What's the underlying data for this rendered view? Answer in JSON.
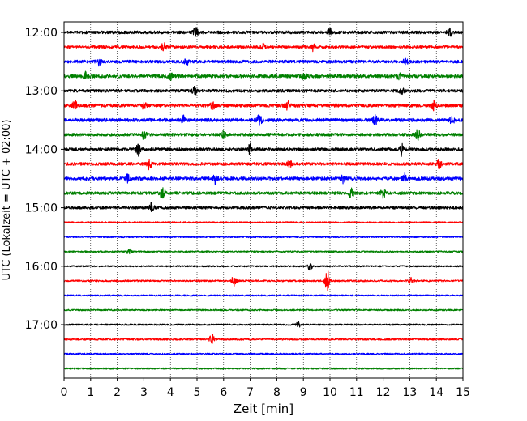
{
  "chart_data": {
    "type": "line",
    "title": "",
    "xlabel": "Zeit  [min]",
    "ylabel": "UTC (Lokalzeit = UTC + 02:00)",
    "xlim": [
      0,
      15
    ],
    "x_ticks": [
      "0",
      "1",
      "2",
      "3",
      "4",
      "5",
      "6",
      "7",
      "8",
      "9",
      "10",
      "11",
      "12",
      "13",
      "14",
      "15"
    ],
    "y_tick_labels": [
      "12:00",
      "13:00",
      "14:00",
      "15:00",
      "16:00",
      "17:00"
    ],
    "grid": "vertical dotted at each minute",
    "trace_color_cycle": [
      "#000000",
      "#ff0000",
      "#0000ff",
      "#008000"
    ],
    "series": [
      {
        "start": "12:00",
        "color": "#000000",
        "amplitude": 1.0,
        "events": [
          {
            "t": 4.95,
            "a": 2.2
          },
          {
            "t": 14.5,
            "a": 1.8
          },
          {
            "t": 10.0,
            "a": 1.4
          }
        ]
      },
      {
        "start": "12:15",
        "color": "#ff0000",
        "amplitude": 0.9,
        "events": [
          {
            "t": 3.75,
            "a": 2.0
          },
          {
            "t": 7.45,
            "a": 1.8
          },
          {
            "t": 9.35,
            "a": 1.5
          }
        ]
      },
      {
        "start": "12:30",
        "color": "#0000ff",
        "amplitude": 1.0,
        "events": [
          {
            "t": 1.3,
            "a": 1.4
          },
          {
            "t": 12.85,
            "a": 1.5
          },
          {
            "t": 4.6,
            "a": 1.2
          }
        ]
      },
      {
        "start": "12:45",
        "color": "#008000",
        "amplitude": 1.1,
        "events": [
          {
            "t": 0.8,
            "a": 1.6
          },
          {
            "t": 4.0,
            "a": 1.5
          },
          {
            "t": 9.05,
            "a": 1.6
          },
          {
            "t": 12.6,
            "a": 1.5
          }
        ]
      },
      {
        "start": "13:00",
        "color": "#000000",
        "amplitude": 1.0,
        "events": [
          {
            "t": 4.9,
            "a": 1.6
          },
          {
            "t": 12.7,
            "a": 1.4
          }
        ]
      },
      {
        "start": "13:15",
        "color": "#ff0000",
        "amplitude": 1.1,
        "events": [
          {
            "t": 0.4,
            "a": 2.0
          },
          {
            "t": 3.0,
            "a": 1.6
          },
          {
            "t": 5.6,
            "a": 1.5
          },
          {
            "t": 8.4,
            "a": 1.5
          },
          {
            "t": 13.9,
            "a": 1.7
          }
        ]
      },
      {
        "start": "13:30",
        "color": "#0000ff",
        "amplitude": 1.1,
        "events": [
          {
            "t": 4.5,
            "a": 1.6
          },
          {
            "t": 7.35,
            "a": 2.4
          },
          {
            "t": 11.7,
            "a": 1.8
          },
          {
            "t": 14.6,
            "a": 1.7
          }
        ]
      },
      {
        "start": "13:45",
        "color": "#008000",
        "amplitude": 1.0,
        "events": [
          {
            "t": 3.0,
            "a": 1.8
          },
          {
            "t": 6.0,
            "a": 1.5
          },
          {
            "t": 13.3,
            "a": 2.0
          }
        ]
      },
      {
        "start": "14:00",
        "color": "#000000",
        "amplitude": 1.0,
        "events": [
          {
            "t": 2.8,
            "a": 2.4
          },
          {
            "t": 7.0,
            "a": 2.0
          },
          {
            "t": 12.7,
            "a": 2.6
          }
        ]
      },
      {
        "start": "14:15",
        "color": "#ff0000",
        "amplitude": 1.0,
        "events": [
          {
            "t": 3.2,
            "a": 2.0
          },
          {
            "t": 8.5,
            "a": 1.8
          },
          {
            "t": 14.1,
            "a": 1.9
          }
        ]
      },
      {
        "start": "14:30",
        "color": "#0000ff",
        "amplitude": 1.1,
        "events": [
          {
            "t": 2.4,
            "a": 1.5
          },
          {
            "t": 5.7,
            "a": 2.0
          },
          {
            "t": 10.5,
            "a": 1.6
          },
          {
            "t": 12.8,
            "a": 2.4
          }
        ]
      },
      {
        "start": "14:45",
        "color": "#008000",
        "amplitude": 1.0,
        "events": [
          {
            "t": 3.7,
            "a": 2.6
          },
          {
            "t": 10.8,
            "a": 2.0
          },
          {
            "t": 12.0,
            "a": 1.8
          }
        ]
      },
      {
        "start": "15:00",
        "color": "#000000",
        "amplitude": 0.9,
        "events": [
          {
            "t": 3.3,
            "a": 2.0
          }
        ]
      },
      {
        "start": "15:15",
        "color": "#ff0000",
        "amplitude": 0.5,
        "events": []
      },
      {
        "start": "15:30",
        "color": "#0000ff",
        "amplitude": 0.5,
        "events": []
      },
      {
        "start": "15:45",
        "color": "#008000",
        "amplitude": 0.5,
        "events": [
          {
            "t": 2.45,
            "a": 1.2
          }
        ]
      },
      {
        "start": "16:00",
        "color": "#000000",
        "amplitude": 0.5,
        "events": [
          {
            "t": 9.25,
            "a": 1.6
          }
        ]
      },
      {
        "start": "16:15",
        "color": "#ff0000",
        "amplitude": 0.6,
        "events": [
          {
            "t": 6.4,
            "a": 2.6
          },
          {
            "t": 9.9,
            "a": 5.0
          },
          {
            "t": 13.05,
            "a": 1.5
          }
        ]
      },
      {
        "start": "16:30",
        "color": "#0000ff",
        "amplitude": 0.5,
        "events": []
      },
      {
        "start": "16:45",
        "color": "#008000",
        "amplitude": 0.5,
        "events": []
      },
      {
        "start": "17:00",
        "color": "#000000",
        "amplitude": 0.5,
        "events": [
          {
            "t": 8.8,
            "a": 1.2
          }
        ]
      },
      {
        "start": "17:15",
        "color": "#ff0000",
        "amplitude": 0.6,
        "events": [
          {
            "t": 5.55,
            "a": 2.4
          }
        ]
      },
      {
        "start": "17:30",
        "color": "#0000ff",
        "amplitude": 0.5,
        "events": []
      },
      {
        "start": "17:45",
        "color": "#008000",
        "amplitude": 0.5,
        "events": []
      }
    ]
  }
}
